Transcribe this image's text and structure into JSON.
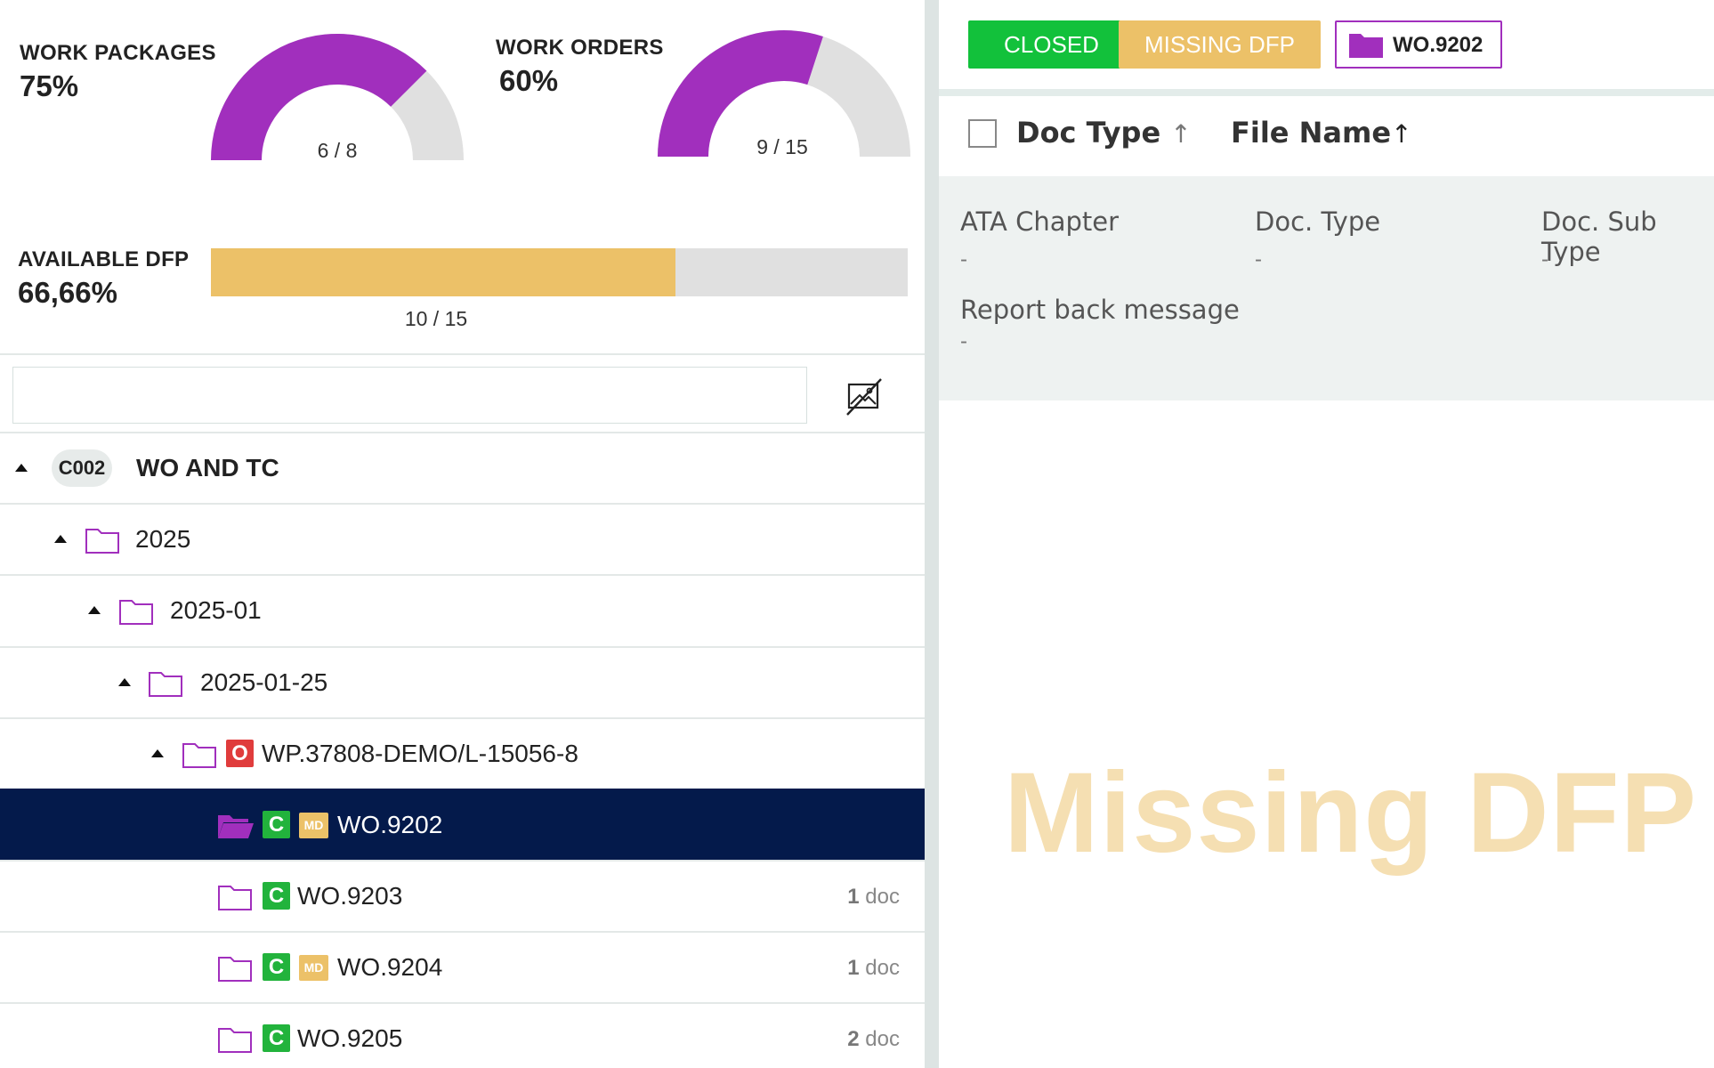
{
  "stats": {
    "work_packages": {
      "label": "WORK PACKAGES",
      "percent": "75%",
      "count": "6 / 8",
      "fraction": 0.75
    },
    "work_orders": {
      "label": "WORK ORDERS",
      "percent": "60%",
      "count": "9 / 15",
      "fraction": 0.6
    },
    "available_dfp": {
      "label": "AVAILABLE DFP",
      "percent": "66,66%",
      "count": "10 / 15",
      "fraction": 0.6666
    }
  },
  "colors": {
    "purple": "#a12fbd",
    "gauge_track": "#e0e0e0",
    "dfp_fill": "#ecc168",
    "closed_green": "#12c13b",
    "selected_row": "#041a4b",
    "open_red": "#e03c3c"
  },
  "search": {
    "value": "",
    "placeholder": ""
  },
  "hide_icon": "image-off-icon",
  "tree": {
    "root": {
      "code": "C002",
      "label": "WO AND TC"
    },
    "year": {
      "label": "2025"
    },
    "month": {
      "label": "2025-01"
    },
    "day": {
      "label": "2025-01-25"
    },
    "package": {
      "badge": "O",
      "label": "WP.37808-DEMO/L-15056-8"
    },
    "orders": [
      {
        "badge": "C",
        "md": "MD",
        "label": "WO.9202",
        "doc_count": "",
        "doc_unit": "",
        "selected": true
      },
      {
        "badge": "C",
        "md": "",
        "label": "WO.9203",
        "doc_count": "1",
        "doc_unit": "doc",
        "selected": false
      },
      {
        "badge": "C",
        "md": "MD",
        "label": "WO.9204",
        "doc_count": "1",
        "doc_unit": "doc",
        "selected": false
      },
      {
        "badge": "C",
        "md": "",
        "label": "WO.9205",
        "doc_count": "2",
        "doc_unit": "doc",
        "selected": false
      }
    ]
  },
  "status_bar": {
    "closed_label": "CLOSED",
    "missing_label": "MISSING DFP",
    "wo_label": "WO.9202"
  },
  "table": {
    "columns": [
      "Doc Type",
      "File Name"
    ],
    "sort_arrow": "↑"
  },
  "details": {
    "ata_chapter": {
      "label": "ATA Chapter",
      "value": "-"
    },
    "doc_type": {
      "label": "Doc. Type",
      "value": "-"
    },
    "doc_sub_type": {
      "label": "Doc. Sub Type",
      "value": "-"
    },
    "report_back": {
      "label": "Report back message",
      "value": "-"
    }
  },
  "watermark": "Missing DFP"
}
